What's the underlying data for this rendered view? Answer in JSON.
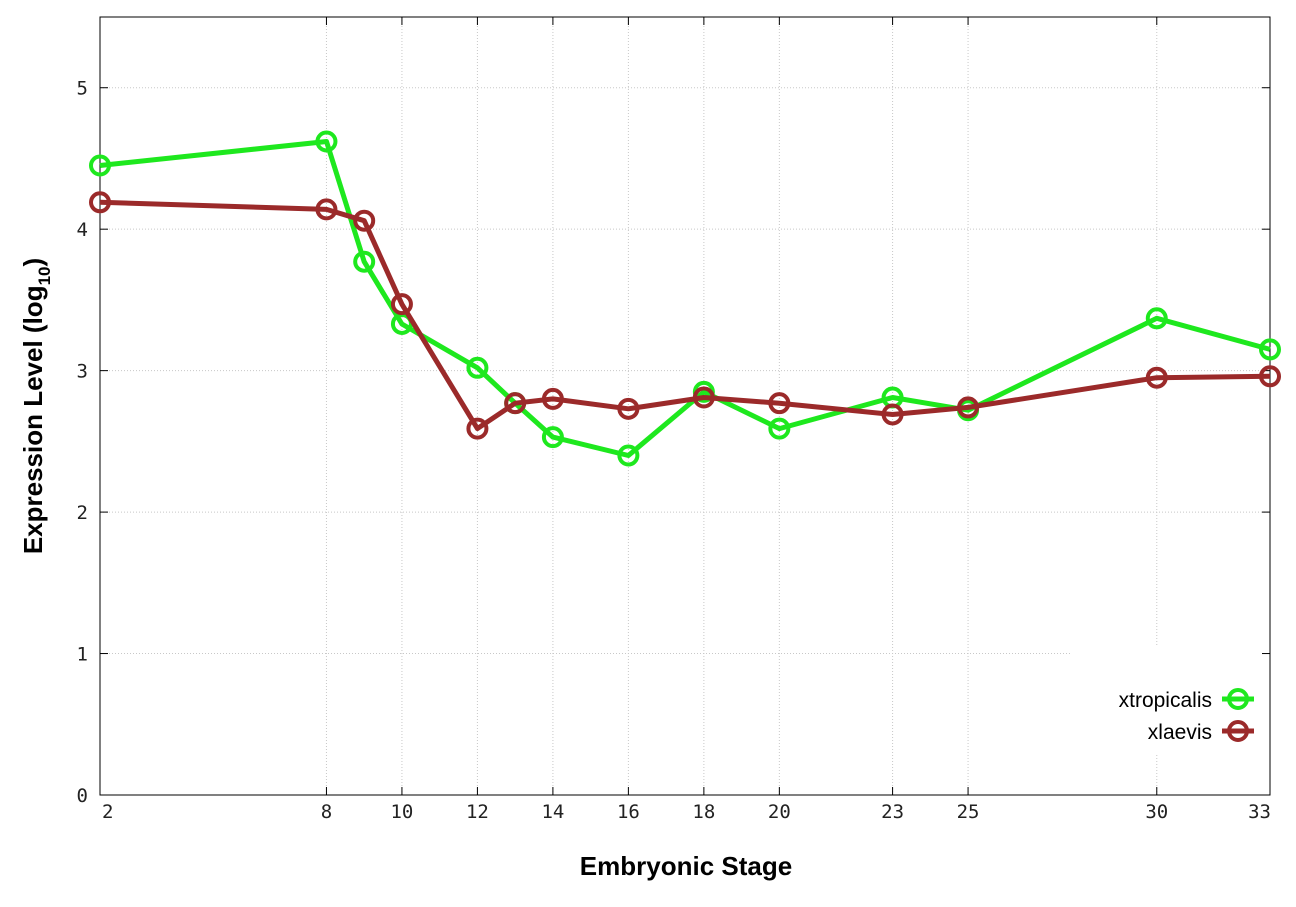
{
  "chart_data": {
    "type": "line",
    "title": "",
    "xlabel": "Embryonic Stage",
    "ylabel_main": "Expression Level (log",
    "ylabel_sub": "10",
    "ylabel_close": ")",
    "x": [
      2,
      8,
      9,
      10,
      12,
      13,
      14,
      16,
      18,
      20,
      23,
      25,
      30,
      33
    ],
    "x_ticks": [
      2,
      8,
      10,
      12,
      14,
      16,
      18,
      20,
      23,
      25,
      30,
      33
    ],
    "y_ticks": [
      0,
      1,
      2,
      3,
      4,
      5
    ],
    "xlim": [
      2,
      33
    ],
    "ylim": [
      0,
      5.5
    ],
    "grid": true,
    "legend_position": "bottom-right",
    "series": [
      {
        "name": "xtropicalis",
        "color": "#1ee81e",
        "values": [
          4.45,
          4.62,
          3.77,
          3.33,
          3.02,
          2.77,
          2.53,
          2.4,
          2.85,
          2.59,
          2.81,
          2.72,
          3.37,
          3.15
        ]
      },
      {
        "name": "xlaevis",
        "color": "#9b2a2a",
        "values": [
          4.19,
          4.14,
          4.06,
          3.47,
          2.59,
          2.77,
          2.8,
          2.73,
          2.81,
          2.77,
          2.69,
          2.74,
          2.95,
          2.96
        ]
      }
    ]
  }
}
